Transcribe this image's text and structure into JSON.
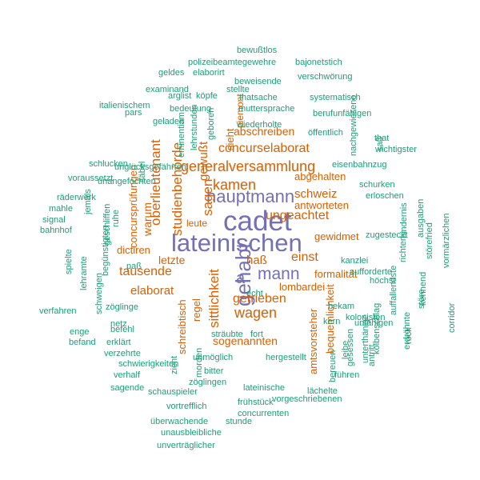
{
  "colors": {
    "purple": "#7570b3",
    "orange": "#d95f02",
    "green": "#1b9e77",
    "background": "#ffffff"
  },
  "words": [
    {
      "text": "lateinischen",
      "color": "purple",
      "rotated": false
    },
    {
      "text": "cadet",
      "color": "purple",
      "rotated": false
    },
    {
      "text": "hauptmann",
      "color": "purple",
      "rotated": false
    },
    {
      "text": "gehabt",
      "color": "purple",
      "rotated": true
    },
    {
      "text": "mann",
      "color": "purple",
      "rotated": false
    },
    {
      "text": "a",
      "color": "purple",
      "rotated": false
    },
    {
      "text": "generalversammlung",
      "color": "orange",
      "rotated": false
    },
    {
      "text": "concurselaborat",
      "color": "orange",
      "rotated": false
    },
    {
      "text": "oberlieutenant",
      "color": "orange",
      "rotated": true
    },
    {
      "text": "studienbehörde",
      "color": "orange",
      "rotated": true
    },
    {
      "text": "wagen",
      "color": "orange",
      "rotated": false
    },
    {
      "text": "kamen",
      "color": "orange",
      "rotated": false
    },
    {
      "text": "sagen",
      "color": "orange",
      "rotated": true
    },
    {
      "text": "ungeachtet",
      "color": "orange",
      "rotated": false
    },
    {
      "text": "getrieben",
      "color": "orange",
      "rotated": false
    },
    {
      "text": "tausende",
      "color": "orange",
      "rotated": false
    },
    {
      "text": "elaborat",
      "color": "orange",
      "rotated": false
    },
    {
      "text": "sittlichkeit",
      "color": "orange",
      "rotated": true
    },
    {
      "text": "einst",
      "color": "orange",
      "rotated": false
    },
    {
      "text": "haß",
      "color": "orange",
      "rotated": false
    },
    {
      "text": "schweiz",
      "color": "orange",
      "rotated": false
    },
    {
      "text": "letzte",
      "color": "orange",
      "rotated": false
    },
    {
      "text": "gewußt",
      "color": "orange",
      "rotated": true
    },
    {
      "text": "abschreiben",
      "color": "orange",
      "rotated": false
    },
    {
      "text": "abgehalten",
      "color": "orange",
      "rotated": false
    },
    {
      "text": "antworteten",
      "color": "orange",
      "rotated": false
    },
    {
      "text": "gewidmet",
      "color": "orange",
      "rotated": false
    },
    {
      "text": "dictiren",
      "color": "orange",
      "rotated": false
    },
    {
      "text": "warum",
      "color": "orange",
      "rotated": true
    },
    {
      "text": "concursprüfungen",
      "color": "orange",
      "rotated": true
    },
    {
      "text": "sogenannten",
      "color": "orange",
      "rotated": false
    },
    {
      "text": "formalität",
      "color": "orange",
      "rotated": false
    },
    {
      "text": "lombardei",
      "color": "orange",
      "rotated": false
    },
    {
      "text": "bequemlichkeit",
      "color": "orange",
      "rotated": true
    },
    {
      "text": "amtsvorsteher",
      "color": "orange",
      "rotated": true
    },
    {
      "text": "sieht",
      "color": "orange",
      "rotated": true
    },
    {
      "text": "leute",
      "color": "orange",
      "rotated": false
    },
    {
      "text": "regel",
      "color": "orange",
      "rotated": true
    },
    {
      "text": "schreibtisch",
      "color": "orange",
      "rotated": true
    },
    {
      "text": "piemont",
      "color": "orange",
      "rotated": true
    },
    {
      "text": "bewußtlos",
      "color": "green",
      "rotated": false
    },
    {
      "text": "polizeibeamtegewehre",
      "color": "green",
      "rotated": false
    },
    {
      "text": "bajonetstich",
      "color": "green",
      "rotated": false
    },
    {
      "text": "geldes",
      "color": "green",
      "rotated": false
    },
    {
      "text": "elaborirt",
      "color": "green",
      "rotated": false
    },
    {
      "text": "verschwörung",
      "color": "green",
      "rotated": false
    },
    {
      "text": "beweisende",
      "color": "green",
      "rotated": false
    },
    {
      "text": "examinand",
      "color": "green",
      "rotated": false
    },
    {
      "text": "stellte",
      "color": "green",
      "rotated": false
    },
    {
      "text": "arglist",
      "color": "green",
      "rotated": false
    },
    {
      "text": "köpfe",
      "color": "green",
      "rotated": false
    },
    {
      "text": "thatsache",
      "color": "green",
      "rotated": false
    },
    {
      "text": "systematisch",
      "color": "green",
      "rotated": false
    },
    {
      "text": "italienischem",
      "color": "green",
      "rotated": false
    },
    {
      "text": "bedeutung",
      "color": "green",
      "rotated": false
    },
    {
      "text": "muttersprache",
      "color": "green",
      "rotated": false
    },
    {
      "text": "berufunfähigen",
      "color": "green",
      "rotated": false
    },
    {
      "text": "pars",
      "color": "green",
      "rotated": false
    },
    {
      "text": "geladen",
      "color": "green",
      "rotated": false
    },
    {
      "text": "wiederholte",
      "color": "green",
      "rotated": false
    },
    {
      "text": "öffentlich",
      "color": "green",
      "rotated": false
    },
    {
      "text": "that",
      "color": "green",
      "rotated": false
    },
    {
      "text": "wichtigster",
      "color": "green",
      "rotated": false
    },
    {
      "text": "eisenbahnzug",
      "color": "green",
      "rotated": false
    },
    {
      "text": "voraussetzt",
      "color": "green",
      "rotated": false
    },
    {
      "text": "schurken",
      "color": "green",
      "rotated": false
    },
    {
      "text": "erloschen",
      "color": "green",
      "rotated": false
    },
    {
      "text": "räderwerk",
      "color": "green",
      "rotated": false
    },
    {
      "text": "mahle",
      "color": "green",
      "rotated": false
    },
    {
      "text": "signal",
      "color": "green",
      "rotated": false
    },
    {
      "text": "bahnhof",
      "color": "green",
      "rotated": false
    },
    {
      "text": "zugesteckt",
      "color": "green",
      "rotated": false
    },
    {
      "text": "kanzlei",
      "color": "green",
      "rotated": false
    },
    {
      "text": "paß",
      "color": "green",
      "rotated": false
    },
    {
      "text": "aufforderte",
      "color": "green",
      "rotated": false
    },
    {
      "text": "höchst",
      "color": "green",
      "rotated": false
    },
    {
      "text": "echt",
      "color": "green",
      "rotated": false
    },
    {
      "text": "zöglinge",
      "color": "green",
      "rotated": false
    },
    {
      "text": "bekam",
      "color": "green",
      "rotated": false
    },
    {
      "text": "kolonisten",
      "color": "green",
      "rotated": false
    },
    {
      "text": "verfahren",
      "color": "green",
      "rotated": false
    },
    {
      "text": "kern",
      "color": "green",
      "rotated": false
    },
    {
      "text": "unfähigen",
      "color": "green",
      "rotated": false
    },
    {
      "text": "netz",
      "color": "green",
      "rotated": false
    },
    {
      "text": "enge",
      "color": "green",
      "rotated": false
    },
    {
      "text": "befehl",
      "color": "green",
      "rotated": false
    },
    {
      "text": "sträubte",
      "color": "green",
      "rotated": false
    },
    {
      "text": "fort",
      "color": "green",
      "rotated": false
    },
    {
      "text": "befand",
      "color": "green",
      "rotated": false
    },
    {
      "text": "erklärt",
      "color": "green",
      "rotated": false
    },
    {
      "text": "verzehrte",
      "color": "green",
      "rotated": false
    },
    {
      "text": "unmöglich",
      "color": "green",
      "rotated": false
    },
    {
      "text": "hergestellt",
      "color": "green",
      "rotated": false
    },
    {
      "text": "schwierigkeiten",
      "color": "green",
      "rotated": false
    },
    {
      "text": "bitter",
      "color": "green",
      "rotated": false
    },
    {
      "text": "verhalf",
      "color": "green",
      "rotated": false
    },
    {
      "text": "führen",
      "color": "green",
      "rotated": false
    },
    {
      "text": "zöglingen",
      "color": "green",
      "rotated": false
    },
    {
      "text": "sagende",
      "color": "green",
      "rotated": false
    },
    {
      "text": "schauspieler",
      "color": "green",
      "rotated": false
    },
    {
      "text": "lateinische",
      "color": "green",
      "rotated": false
    },
    {
      "text": "lächelte",
      "color": "green",
      "rotated": false
    },
    {
      "text": "vorgeschriebenen",
      "color": "green",
      "rotated": false
    },
    {
      "text": "vortrefflich",
      "color": "green",
      "rotated": false
    },
    {
      "text": "frühstück",
      "color": "green",
      "rotated": false
    },
    {
      "text": "concurrenten",
      "color": "green",
      "rotated": false
    },
    {
      "text": "überwachende",
      "color": "green",
      "rotated": false
    },
    {
      "text": "stunde",
      "color": "green",
      "rotated": false
    },
    {
      "text": "unausbleibliche",
      "color": "green",
      "rotated": false
    },
    {
      "text": "unverträglicher",
      "color": "green",
      "rotated": false
    },
    {
      "text": "schlucken",
      "color": "green",
      "rotated": false
    },
    {
      "text": "unangefochten",
      "color": "green",
      "rotated": false
    },
    {
      "text": "unglücksgefährten",
      "color": "green",
      "rotated": false
    },
    {
      "text": "säbel",
      "color": "green",
      "rotated": true
    },
    {
      "text": "eminentiam",
      "color": "green",
      "rotated": true
    },
    {
      "text": "lehrstunden",
      "color": "green",
      "rotated": true
    },
    {
      "text": "geboren",
      "color": "green",
      "rotated": true
    },
    {
      "text": "jemals",
      "color": "green",
      "rotated": true
    },
    {
      "text": "ruhe",
      "color": "green",
      "rotated": true
    },
    {
      "text": "spielte",
      "color": "green",
      "rotated": true
    },
    {
      "text": "lehramte",
      "color": "green",
      "rotated": true
    },
    {
      "text": "schweigen",
      "color": "green",
      "rotated": true
    },
    {
      "text": "geschliffen",
      "color": "green",
      "rotated": true
    },
    {
      "text": "begünstigten",
      "color": "green",
      "rotated": true
    },
    {
      "text": "nachgewiesene",
      "color": "green",
      "rotated": true
    },
    {
      "text": "saß",
      "color": "green",
      "rotated": true
    },
    {
      "text": "ausgaben",
      "color": "green",
      "rotated": true
    },
    {
      "text": "richten",
      "color": "green",
      "rotated": true
    },
    {
      "text": "hindernis",
      "color": "green",
      "rotated": true
    },
    {
      "text": "störefried",
      "color": "green",
      "rotated": true
    },
    {
      "text": "vormärzlichen",
      "color": "green",
      "rotated": true
    },
    {
      "text": "störe",
      "color": "green",
      "rotated": true
    },
    {
      "text": "kennend",
      "color": "green",
      "rotated": true
    },
    {
      "text": "auffallendste",
      "color": "green",
      "rotated": true
    },
    {
      "text": "corridor",
      "color": "green",
      "rotated": true
    },
    {
      "text": "erdröhnte",
      "color": "green",
      "rotated": true
    },
    {
      "text": "rock",
      "color": "green",
      "rotated": true
    },
    {
      "text": "kolbenschlag",
      "color": "green",
      "rotated": true
    },
    {
      "text": "unterthänige",
      "color": "green",
      "rotated": true
    },
    {
      "text": "gesessen",
      "color": "green",
      "rotated": true
    },
    {
      "text": "leibe",
      "color": "green",
      "rotated": true
    },
    {
      "text": "antritt",
      "color": "green",
      "rotated": true
    },
    {
      "text": "bereuen",
      "color": "green",
      "rotated": true
    },
    {
      "text": "zieht",
      "color": "green",
      "rotated": true
    },
    {
      "text": "morden",
      "color": "green",
      "rotated": true
    },
    {
      "text": "begab",
      "color": "green",
      "rotated": true
    },
    {
      "text": "sturm",
      "color": "green",
      "rotated": true
    },
    {
      "text": "reiche",
      "color": "green",
      "rotated": true
    }
  ]
}
